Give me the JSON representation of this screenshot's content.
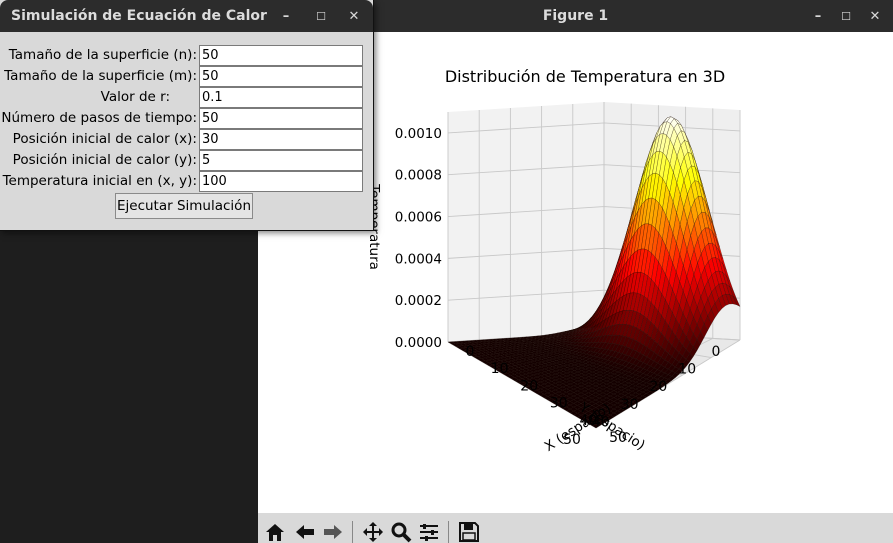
{
  "figure_window": {
    "title": "Figure 1",
    "controls": {
      "minimize": "–",
      "maximize": "☐",
      "close": "✕"
    }
  },
  "dialog": {
    "title": "Simulación de Ecuación de Calor",
    "controls": {
      "minimize": "–",
      "maximize": "☐",
      "close": "✕"
    },
    "fields": [
      {
        "label": "Tamaño de la superficie (n):",
        "value": "50"
      },
      {
        "label": "Tamaño de la superficie (m):",
        "value": "50"
      },
      {
        "label": "Valor de r:",
        "value": "0.1"
      },
      {
        "label": "Número de pasos de tiempo:",
        "value": "50"
      },
      {
        "label": "Posición inicial de calor (x):",
        "value": "30"
      },
      {
        "label": "Posición inicial de calor (y):",
        "value": "5"
      },
      {
        "label": "Temperatura inicial en (x, y):",
        "value": "100"
      }
    ],
    "run_label": "Ejecutar Simulación"
  },
  "chart_data": {
    "type": "surface3d",
    "title": "Distribución de Temperatura en 3D",
    "xlabel": "X (espacio)",
    "ylabel": "Y (espacio)",
    "zlabel": "Temperatura",
    "x_ticks": [
      "0",
      "10",
      "20",
      "30",
      "40",
      "50"
    ],
    "y_ticks": [
      "0",
      "10",
      "20",
      "30",
      "40",
      "50"
    ],
    "z_ticks": [
      "0.0000",
      "0.0002",
      "0.0004",
      "0.0006",
      "0.0008",
      "0.0010"
    ],
    "xlim": [
      0,
      50
    ],
    "ylim": [
      0,
      50
    ],
    "zlim": [
      0,
      0.0011
    ],
    "peak": {
      "x": 30,
      "y": 5,
      "z": 0.00108
    },
    "colormap": "hot",
    "grid": true
  },
  "toolbar": {
    "icons": [
      "home-icon",
      "back-icon",
      "forward-icon",
      "pan-icon",
      "zoom-icon",
      "configure-icon",
      "save-icon"
    ]
  }
}
